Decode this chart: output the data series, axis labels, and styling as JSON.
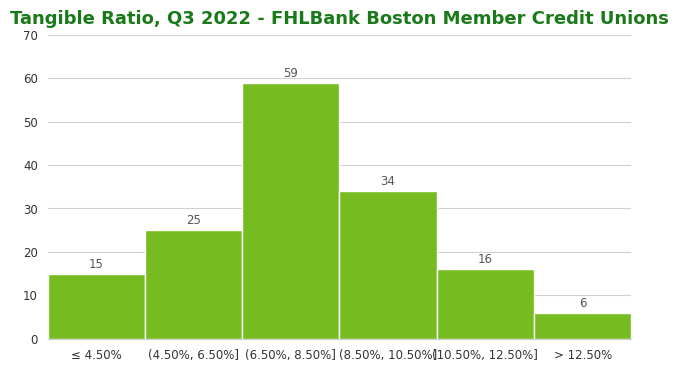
{
  "title": "Tangible Ratio, Q3 2022 - FHLBank Boston Member Credit Unions",
  "categories": [
    "≤ 4.50%",
    "(4.50%, 6.50%]",
    "(6.50%, 8.50%]",
    "(8.50%, 10.50%]",
    "(10.50%, 12.50%]",
    "> 12.50%"
  ],
  "values": [
    15,
    25,
    59,
    34,
    16,
    6
  ],
  "bar_color": "#76BC21",
  "bar_edgecolor": "#ffffff",
  "title_color": "#1a7a1a",
  "title_fontsize": 13.0,
  "title_fontweight": "bold",
  "tick_fontsize": 8.5,
  "ylim": [
    0,
    70
  ],
  "yticks": [
    0,
    10,
    20,
    30,
    40,
    50,
    60,
    70
  ],
  "grid_color": "#d0d0d0",
  "background_color": "#ffffff",
  "value_label_color": "#555555",
  "value_label_fontsize": 8.5
}
